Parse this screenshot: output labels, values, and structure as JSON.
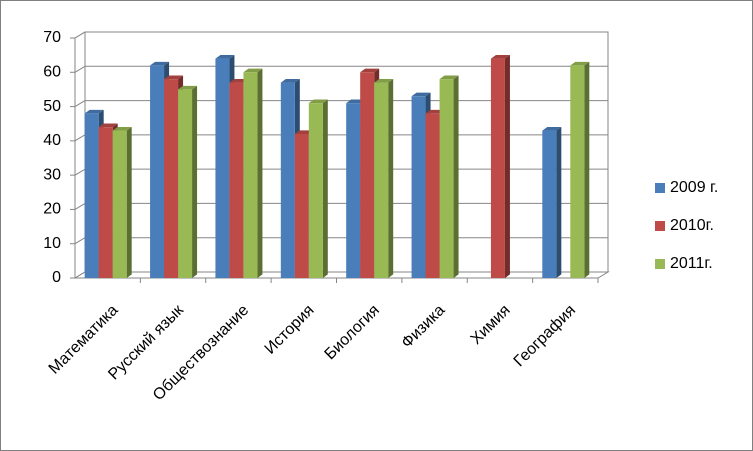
{
  "chart_data": {
    "type": "bar",
    "categories": [
      "Математика",
      "Русский язык",
      "Обществознание",
      "История",
      "Биология",
      "Физика",
      "Химия",
      "География"
    ],
    "series": [
      {
        "name": "2009 г.",
        "color": "#4a7ebb",
        "values": [
          48,
          62,
          64,
          57,
          51,
          53,
          null,
          43
        ]
      },
      {
        "name": "2010г.",
        "color": "#be4b48",
        "values": [
          44,
          58,
          57,
          42,
          60,
          48,
          64,
          null
        ]
      },
      {
        "name": "2011г.",
        "color": "#98b954",
        "values": [
          43,
          55,
          60,
          51,
          57,
          58,
          null,
          62
        ]
      }
    ],
    "ylim": [
      0,
      70
    ],
    "yticks": [
      0,
      10,
      20,
      30,
      40,
      50,
      60,
      70
    ],
    "grid": true,
    "legend": "right"
  }
}
